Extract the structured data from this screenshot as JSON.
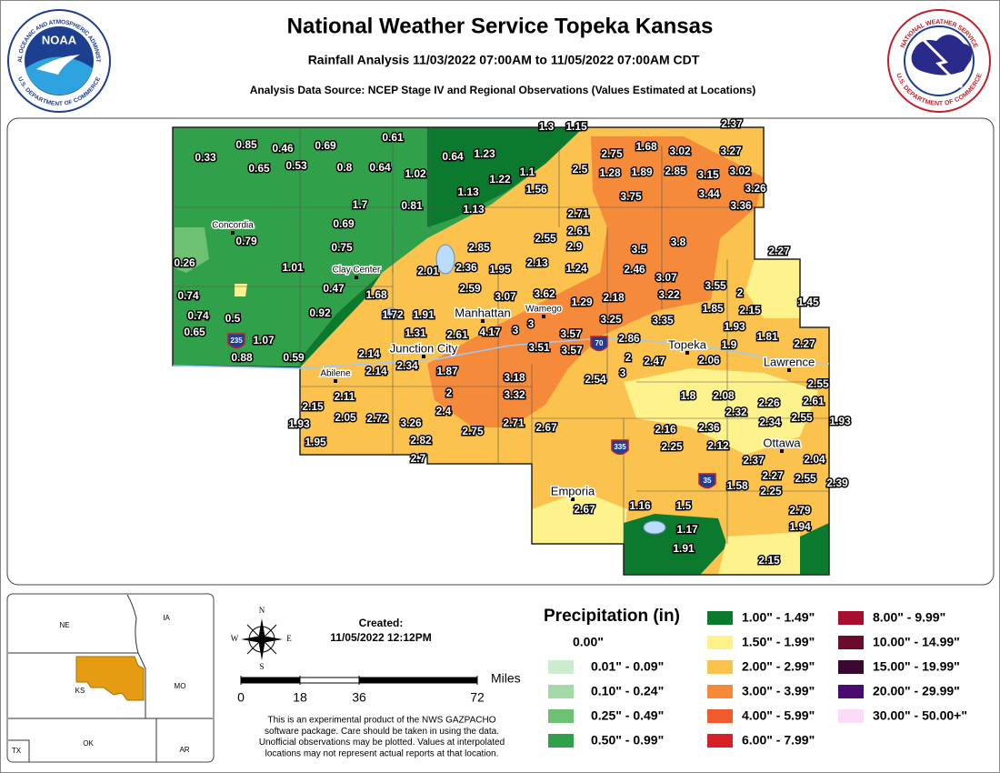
{
  "header": {
    "title": "National Weather Service Topeka Kansas",
    "subtitle": "Rainfall Analysis 11/03/2022 07:00AM to 11/05/2022 07:00AM CDT",
    "source": "Analysis Data Source: NCEP Stage IV and Regional Observations (Values Estimated at Locations)"
  },
  "logos": {
    "noaa": {
      "name": "NOAA",
      "ring_top": "NATIONAL OCEANIC AND ATMOSPHERIC ADMINISTRATION",
      "ring_bottom": "U.S. DEPARTMENT OF COMMERCE"
    },
    "nws": {
      "ring_top": "NATIONAL WEATHER SERVICE",
      "ring_bottom": "U.S. DEPARTMENT OF COMMERCE"
    }
  },
  "stations": [
    0.33,
    0.85,
    0.46,
    0.69,
    0.61,
    1.3,
    1.15,
    2.37,
    0.65,
    0.53,
    0.8,
    0.64,
    1.02,
    0.64,
    1.23,
    2.75,
    1.68,
    3.02,
    3.27,
    1.1,
    1.22,
    2.5,
    1.28,
    1.89,
    2.85,
    3.15,
    3.02,
    1.56,
    1.13,
    3.26,
    3.44,
    1.7,
    0.81,
    1.13,
    3.75,
    3.36,
    0.69,
    2.71,
    0.79,
    2.61,
    2.55,
    3.5,
    3.8,
    0.75,
    2.85,
    2.9,
    2.27,
    0.26,
    1.01,
    2.36,
    1.95,
    2.13,
    1.24,
    2.46,
    2.01,
    3.07,
    0.47,
    2.59,
    3.07,
    3.62,
    3.55,
    2,
    0.74,
    1.68,
    3.22,
    1.45,
    0.92,
    1.29,
    2.18,
    0.74,
    0.5,
    1.72,
    1.91,
    1.85,
    2.15,
    0.65,
    3,
    3.25,
    3.35,
    1.93,
    1.31,
    2.61,
    4.17,
    3,
    3.57,
    1.81,
    1.07,
    2.86,
    1.9,
    2.27,
    3.51,
    3.57,
    0.88,
    0.59,
    2.14,
    2,
    2.47,
    2.06,
    2.34,
    2.14,
    1.87,
    3,
    3.18,
    2.54,
    2.55,
    2.11,
    2,
    3.32,
    1.8,
    2.08,
    2.26,
    2.61,
    2.15,
    2.4,
    2.32,
    1.93,
    2.05,
    2.72,
    3.26,
    2.71,
    2.67,
    2.75,
    2.34,
    2.55,
    1.93,
    2.16,
    2.36,
    2.82,
    1.95,
    2.25,
    2.12,
    2.7,
    2.37,
    2.04,
    2.27,
    2.55,
    2.39,
    1.58,
    2.25,
    2.67,
    1.16,
    1.5,
    2.79,
    1.17,
    1.94,
    1.91,
    2.15
  ],
  "cities": [
    "Concordia",
    "Clay Center",
    "Manhattan",
    "Wamego",
    "Topeka",
    "Junction City",
    "Lawrence",
    "Abilene",
    "Ottawa",
    "Emporia"
  ],
  "interstates": [
    "235",
    "70",
    "335",
    "35"
  ],
  "inset": {
    "states": [
      "NE",
      "IA",
      "KS",
      "MO",
      "OK",
      "AR",
      "TX"
    ]
  },
  "compass": [
    "N",
    "S",
    "E",
    "W"
  ],
  "created": {
    "label": "Created:",
    "time": "11/05/2022 12:12PM"
  },
  "scale": {
    "ticks": [
      0,
      18,
      36,
      72
    ],
    "unit": "Miles"
  },
  "disclaimer": [
    "This is an experimental product of the NWS GAZPACHO",
    "software package. Care should be taken in using the data.",
    "Unofficial observations may be plotted. Values at interpolated",
    "locations may not represent actual reports at that location."
  ],
  "legend": {
    "title": "Precipitation (in)",
    "items": [
      {
        "label": "0.00\"",
        "color": "#ffffff"
      },
      {
        "label": "0.01\" - 0.09\"",
        "color": "#cdeccf"
      },
      {
        "label": "0.10\" - 0.24\"",
        "color": "#a3d9a6"
      },
      {
        "label": "0.25\" - 0.49\"",
        "color": "#6cc172"
      },
      {
        "label": "0.50\" - 0.99\"",
        "color": "#31a04a"
      },
      {
        "label": "1.00\" - 1.49\"",
        "color": "#0c7a2e"
      },
      {
        "label": "1.50\" - 1.99\"",
        "color": "#fdf28c"
      },
      {
        "label": "2.00\" - 2.99\"",
        "color": "#fbc34e"
      },
      {
        "label": "3.00\" - 3.99\"",
        "color": "#f58b3a"
      },
      {
        "label": "4.00\" - 5.99\"",
        "color": "#f15a2b"
      },
      {
        "label": "6.00\" - 7.99\"",
        "color": "#d82027"
      },
      {
        "label": "8.00\" - 9.99\"",
        "color": "#a51030"
      },
      {
        "label": "10.00\" - 14.99\"",
        "color": "#6c0b2c"
      },
      {
        "label": "15.00\" - 19.99\"",
        "color": "#3a0932"
      },
      {
        "label": "20.00\" - 29.99\"",
        "color": "#4b0a70"
      },
      {
        "label": "30.00\" - 50.00+\"",
        "color": "#fbdcf6"
      }
    ]
  }
}
